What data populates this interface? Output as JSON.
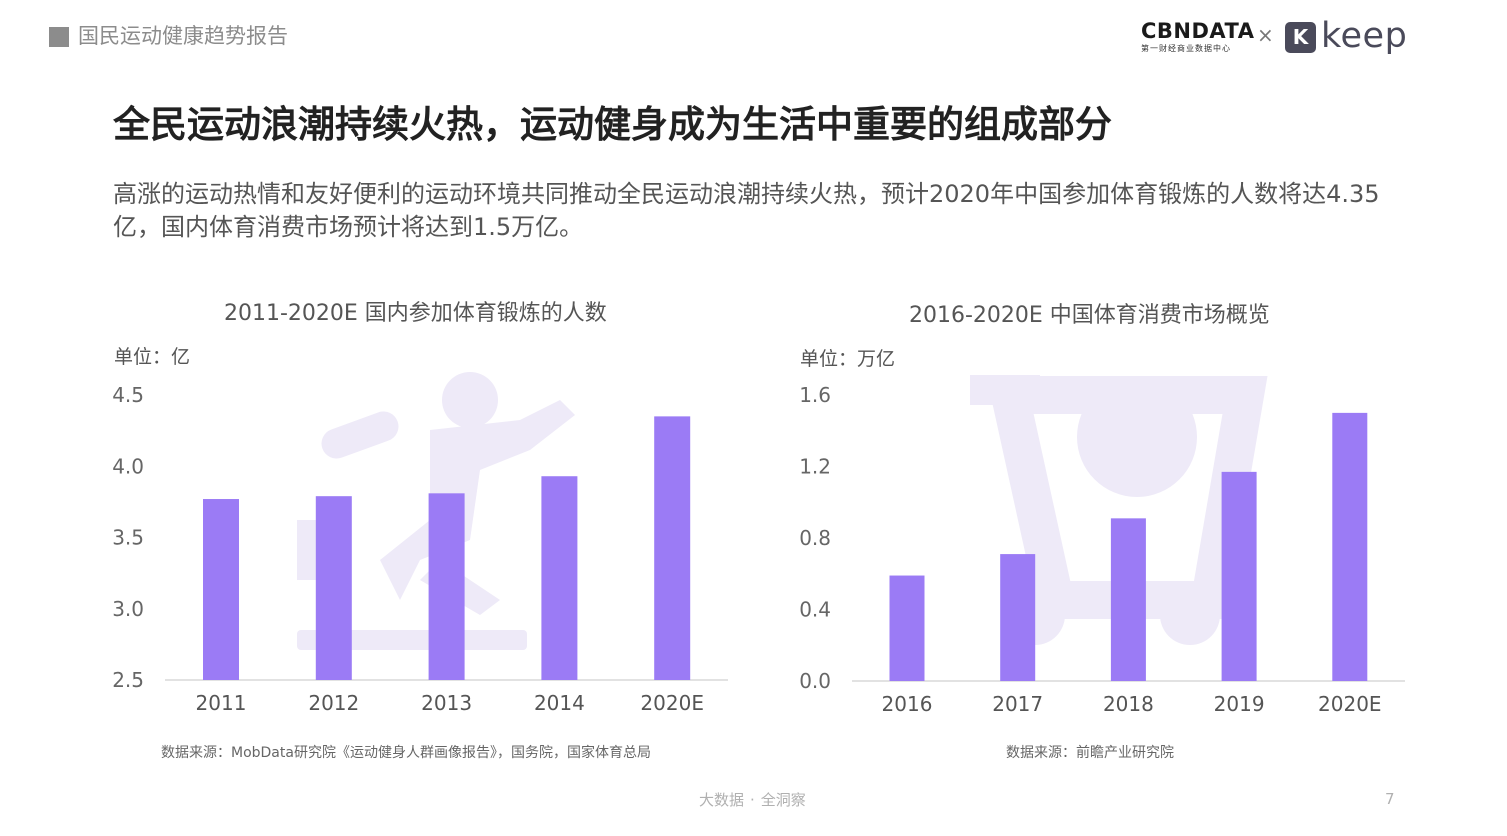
{
  "header": {
    "title": "国民运动健康趋势报告"
  },
  "logos": {
    "cbndata_word": "CBNDATA",
    "cbndata_sub": "第一财经商业数据中心",
    "separator": "×",
    "keep_mark": "K",
    "keep_word": "keep"
  },
  "main": {
    "title": "全民运动浪潮持续火热，运动健身成为生活中重要的组成部分",
    "description": "高涨的运动热情和友好便利的运动环境共同推动全民运动浪潮持续火热，预计2020年中国参加体育锻炼的人数将达4.35亿，国内体育消费市场预计将达到1.5万亿。"
  },
  "colors": {
    "bar": "#9b7bf5",
    "watermark": "#eeeaf8",
    "axis": "#d9d9d9"
  },
  "footer": {
    "left": "大数据",
    "dot": "·",
    "right": "全洞察",
    "page": "7"
  },
  "chart_data": [
    {
      "type": "bar",
      "title": "2011-2020E 国内参加体育锻炼的人数",
      "unit": "单位：亿",
      "categories": [
        "2011",
        "2012",
        "2013",
        "2014",
        "2020E"
      ],
      "values": [
        3.77,
        3.79,
        3.81,
        3.93,
        4.35
      ],
      "ylim": [
        2.5,
        4.5
      ],
      "yticks": [
        "2.5",
        "3.0",
        "3.5",
        "4.0",
        "4.5"
      ],
      "grid": false,
      "watermark_icon": "runner-icon",
      "source": "数据来源：MobData研究院《运动健身人群画像报告》，国务院，国家体育总局"
    },
    {
      "type": "bar",
      "title": "2016-2020E 中国体育消费市场概览",
      "unit": "单位：万亿",
      "categories": [
        "2016",
        "2017",
        "2018",
        "2019",
        "2020E"
      ],
      "values": [
        0.59,
        0.71,
        0.91,
        1.17,
        1.5
      ],
      "ylim": [
        0.0,
        1.6
      ],
      "yticks": [
        "0.0",
        "0.4",
        "0.8",
        "1.2",
        "1.6"
      ],
      "grid": false,
      "watermark_icon": "shopping-cart-icon",
      "source": "数据来源：前瞻产业研究院"
    }
  ]
}
